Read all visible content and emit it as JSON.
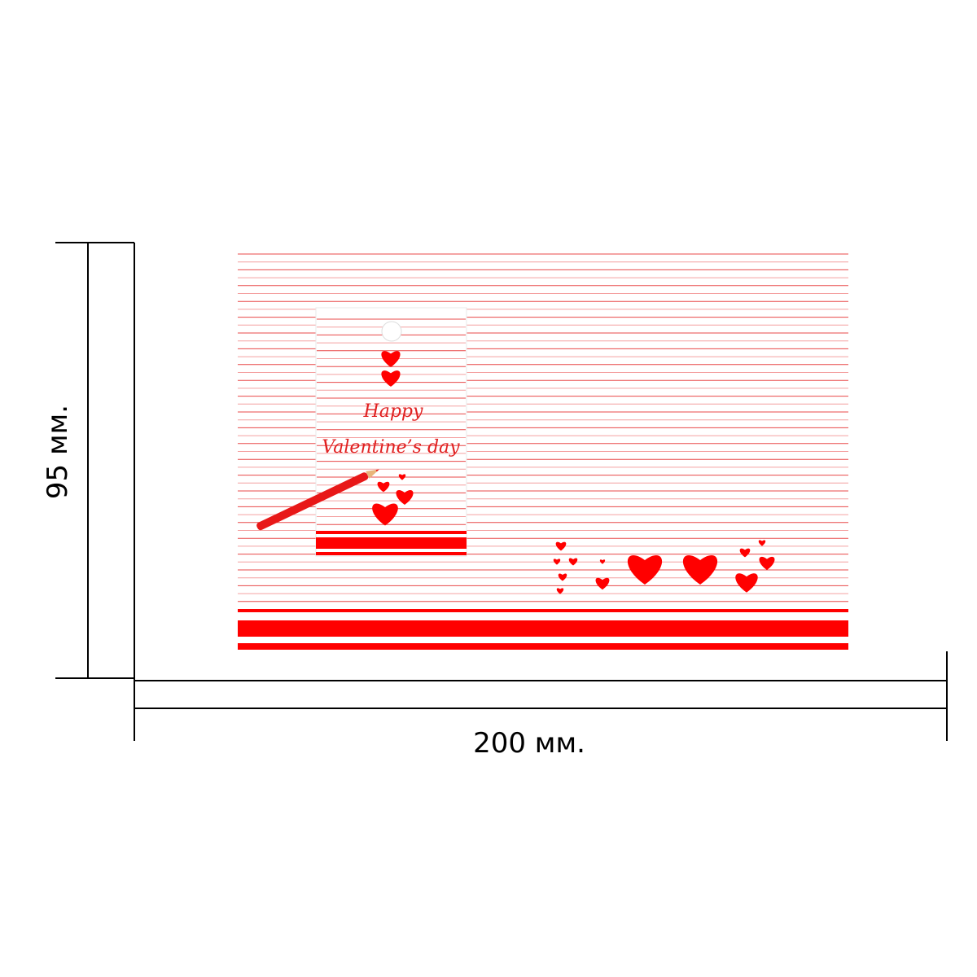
{
  "dimensions": {
    "height": "95 мм.",
    "width": "200 мм."
  },
  "tag": {
    "line1": "Happy",
    "line2": "Valentine’s day"
  }
}
